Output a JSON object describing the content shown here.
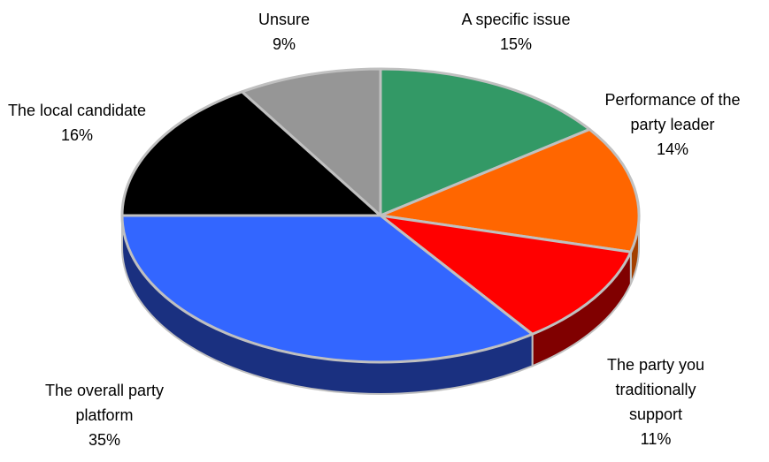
{
  "chart_data": {
    "type": "pie",
    "style": "3d",
    "slices": [
      {
        "label": "A specific issue",
        "value": 15,
        "display": "15%",
        "color": "#339966",
        "side_color": "#1f6b44"
      },
      {
        "label": "Performance of the party leader",
        "value": 14,
        "display": "14%",
        "color": "#ff6600",
        "side_color": "#a34000"
      },
      {
        "label": "The party you traditionally support",
        "value": 11,
        "display": "11%",
        "color": "#ff0000",
        "side_color": "#800000"
      },
      {
        "label": "The overall party platform",
        "value": 35,
        "display": "35%",
        "color": "#3366ff",
        "side_color": "#1a3080"
      },
      {
        "label": "The local candidate",
        "value": 16,
        "display": "16%",
        "color": "#000000",
        "side_color": "#000000"
      },
      {
        "label": "Unsure",
        "value": 9,
        "display": "9%",
        "color": "#969696",
        "side_color": "#5a5a5a"
      }
    ],
    "label_lines": [
      [
        "A specific issue",
        "15%"
      ],
      [
        "Performance of the",
        "party leader",
        "14%"
      ],
      [
        "The party you",
        "traditionally",
        "support",
        "11%"
      ],
      [
        "The overall party",
        "platform",
        "35%"
      ],
      [
        "The local candidate",
        "16%"
      ],
      [
        "Unsure",
        "9%"
      ]
    ]
  }
}
